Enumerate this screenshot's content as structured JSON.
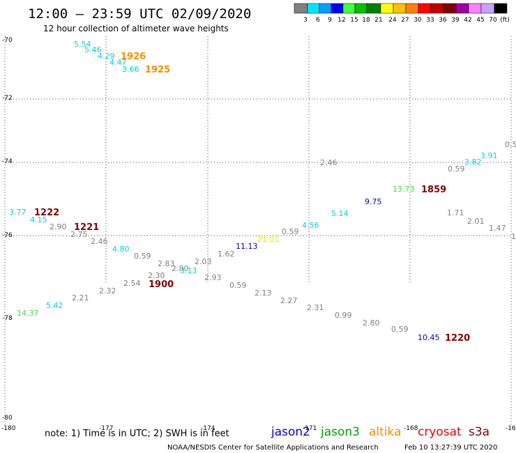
{
  "header": {
    "title": "12:00 – 23:59 UTC 02/09/2020",
    "subtitle": "12 hour collection of altimeter wave heights"
  },
  "legend": {
    "unit": "(ft)",
    "bins": [
      {
        "label": "3",
        "color": "#808080"
      },
      {
        "label": "6",
        "color": "#00e5ff"
      },
      {
        "label": "9",
        "color": "#00a0ff"
      },
      {
        "label": "12",
        "color": "#0000ff"
      },
      {
        "label": "15",
        "color": "#40ff40"
      },
      {
        "label": "18",
        "color": "#00c000"
      },
      {
        "label": "21",
        "color": "#008000"
      },
      {
        "label": "24",
        "color": "#ffff00"
      },
      {
        "label": "27",
        "color": "#ffc000"
      },
      {
        "label": "30",
        "color": "#ff8000"
      },
      {
        "label": "33",
        "color": "#ff0000"
      },
      {
        "label": "36",
        "color": "#c00000"
      },
      {
        "label": "39",
        "color": "#800000"
      },
      {
        "label": "42",
        "color": "#a000a0"
      },
      {
        "label": "45",
        "color": "#ff80ff"
      },
      {
        "label": "70",
        "color": "#c8a0ff"
      },
      {
        "label": "",
        "color": "#000000"
      }
    ]
  },
  "axes": {
    "lat_labels": [
      "-70",
      "-72",
      "-74",
      "-76",
      "-78",
      "-80"
    ],
    "lon_labels": [
      "-180",
      "-177",
      "-174",
      "-171",
      "-168",
      "-16"
    ],
    "right_labels": [
      "0.5",
      "1"
    ]
  },
  "observations": [
    {
      "text": "5.54",
      "color": "#00d0e0"
    },
    {
      "text": "5.46",
      "color": "#00d0e0"
    },
    {
      "text": "4.29",
      "color": "#00d0e0"
    },
    {
      "text": "4.47",
      "color": "#00d0e0"
    },
    {
      "text": "3.66",
      "color": "#00d0e0"
    },
    {
      "text": "2.46",
      "color": "#808080"
    },
    {
      "text": "0.59",
      "color": "#808080"
    },
    {
      "text": "3.82",
      "color": "#00d0e0"
    },
    {
      "text": "3.91",
      "color": "#00d0e0"
    },
    {
      "text": "13.73",
      "color": "#40e040"
    },
    {
      "text": "9.75",
      "color": "#0000c0"
    },
    {
      "text": "5.14",
      "color": "#00d0e0"
    },
    {
      "text": "4.56",
      "color": "#00d0e0"
    },
    {
      "text": "0.59",
      "color": "#808080"
    },
    {
      "text": "21.01",
      "color": "#e8e800"
    },
    {
      "text": "11.13",
      "color": "#0000c0"
    },
    {
      "text": "1.62",
      "color": "#808080"
    },
    {
      "text": "1.71",
      "color": "#808080"
    },
    {
      "text": "2.01",
      "color": "#808080"
    },
    {
      "text": "1.47",
      "color": "#808080"
    },
    {
      "text": "3.77",
      "color": "#00d0e0"
    },
    {
      "text": "4.15",
      "color": "#00d0e0"
    },
    {
      "text": "2.90",
      "color": "#808080"
    },
    {
      "text": "2.75",
      "color": "#808080"
    },
    {
      "text": "2.46",
      "color": "#808080"
    },
    {
      "text": "4.80",
      "color": "#00d0e0"
    },
    {
      "text": "0.59",
      "color": "#808080"
    },
    {
      "text": "2.83",
      "color": "#808080"
    },
    {
      "text": "2.80",
      "color": "#808080"
    },
    {
      "text": "3.13",
      "color": "#00d0e0"
    },
    {
      "text": "2.03",
      "color": "#808080"
    },
    {
      "text": "2.30",
      "color": "#808080"
    },
    {
      "text": "2.54",
      "color": "#808080"
    },
    {
      "text": "2.93",
      "color": "#808080"
    },
    {
      "text": "2.32",
      "color": "#808080"
    },
    {
      "text": "2.21",
      "color": "#808080"
    },
    {
      "text": "5.42",
      "color": "#00d0e0"
    },
    {
      "text": "14.37",
      "color": "#40e040"
    },
    {
      "text": "0.59",
      "color": "#808080"
    },
    {
      "text": "2.13",
      "color": "#808080"
    },
    {
      "text": "2.27",
      "color": "#808080"
    },
    {
      "text": "2.31",
      "color": "#808080"
    },
    {
      "text": "0.99",
      "color": "#808080"
    },
    {
      "text": "2.80",
      "color": "#808080"
    },
    {
      "text": "0.59",
      "color": "#808080"
    },
    {
      "text": "10.45",
      "color": "#0000c0"
    }
  ],
  "pass_times": [
    {
      "text": "1926",
      "color": "#f09000"
    },
    {
      "text": "1925",
      "color": "#f09000"
    },
    {
      "text": "1859",
      "color": "#800000"
    },
    {
      "text": "1222",
      "color": "#800000"
    },
    {
      "text": "1221",
      "color": "#800000"
    },
    {
      "text": "1900",
      "color": "#800000"
    },
    {
      "text": "1220",
      "color": "#800000"
    }
  ],
  "footer": {
    "note": "note:  1) Time is in UTC;  2) SWH is in feet",
    "satellites": [
      {
        "name": "jason2",
        "color": "#0000d0"
      },
      {
        "name": "jason3",
        "color": "#00a000"
      },
      {
        "name": "altika",
        "color": "#f09000"
      },
      {
        "name": "cryosat",
        "color": "#e00000"
      },
      {
        "name": "s3a",
        "color": "#800000"
      }
    ],
    "credit": "NOAA/NESDIS Center for Satellite Applications and Research",
    "timestamp": "Feb 10 13:27:39 UTC 2020"
  }
}
